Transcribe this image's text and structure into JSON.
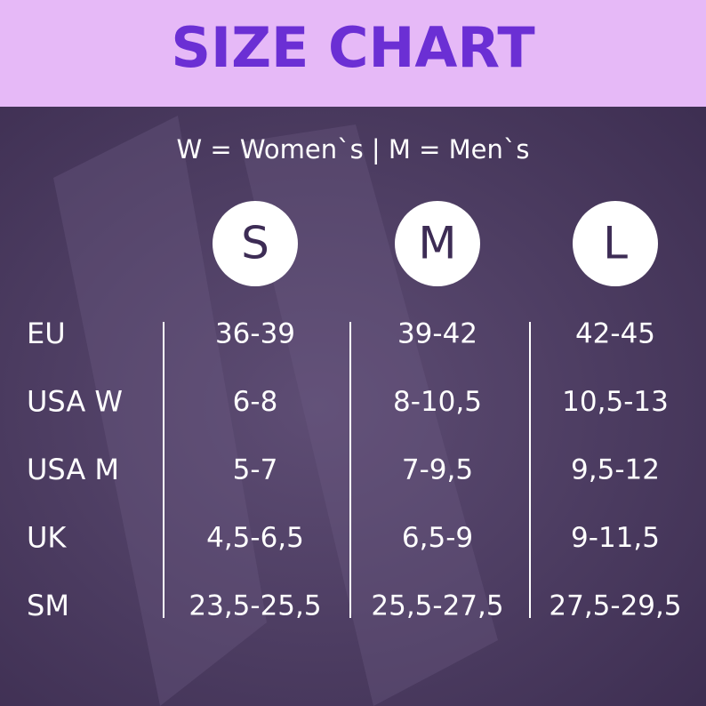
{
  "header": {
    "title": "SIZE CHART"
  },
  "subtitle": "W = Women`s | M = Men`s",
  "table": {
    "columns": [
      "S",
      "M",
      "L"
    ],
    "rows": [
      [
        "EU",
        "36-39",
        "39-42",
        "42-45"
      ],
      [
        "USA W",
        "6-8",
        "8-10,5",
        "10,5-13"
      ],
      [
        "USA M",
        "5-7",
        "7-9,5",
        "9,5-12"
      ],
      [
        "UK",
        "4,5-6,5",
        "6,5-9",
        "9-11,5"
      ],
      [
        "SM",
        "23,5-25,5",
        "25,5-27,5",
        "27,5-29,5"
      ]
    ]
  }
}
